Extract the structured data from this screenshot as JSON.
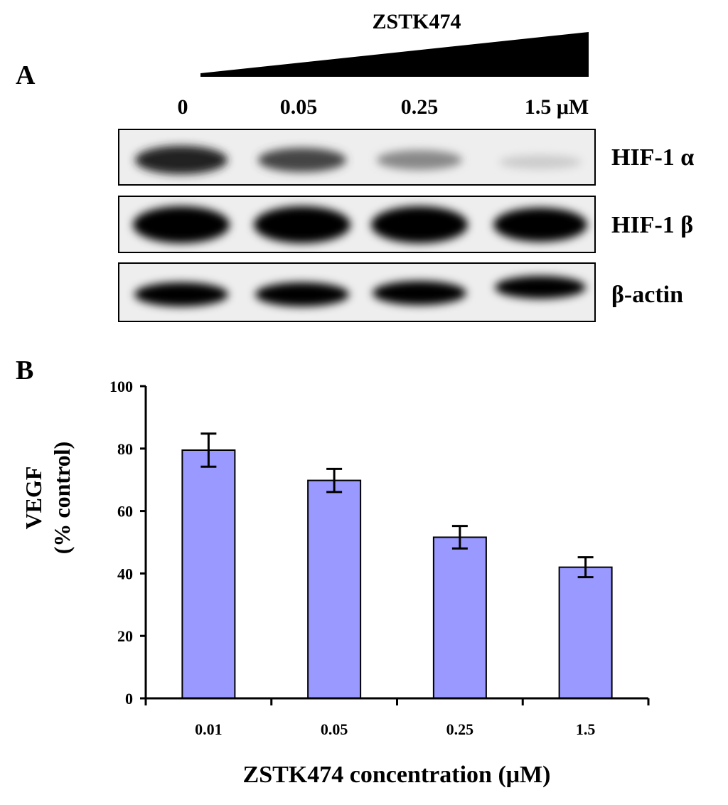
{
  "panel_a": {
    "label": "A",
    "treatment": "ZSTK474",
    "lanes": [
      "0",
      "0.05",
      "0.25",
      "1.5 μM"
    ],
    "blots": [
      "HIF-1 α",
      "HIF-1 β",
      "β-actin"
    ]
  },
  "chart_data": {
    "type": "bar",
    "panel_label": "B",
    "categories": [
      "0.01",
      "0.05",
      "0.25",
      "1.5"
    ],
    "values": [
      79.5,
      69.8,
      51.6,
      42
    ],
    "errors": [
      5.3,
      3.7,
      3.6,
      3.2
    ],
    "color": "#9999ff",
    "ylim": [
      0,
      100
    ],
    "yticks": [
      0,
      20,
      40,
      60,
      80,
      100
    ],
    "ylabel": [
      "VEGF",
      "(% control)"
    ],
    "xlabel": "ZSTK474 concentration (μM)"
  }
}
